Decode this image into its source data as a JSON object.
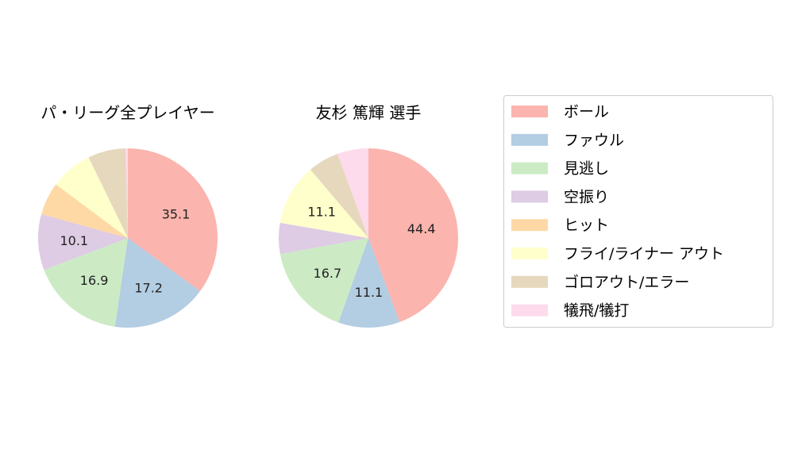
{
  "chart_data": [
    {
      "type": "pie",
      "title": "パ・リーグ全プレイヤー",
      "categories": [
        "ボール",
        "ファウル",
        "見逃し",
        "空振り",
        "ヒット",
        "フライ/ライナー アウト",
        "ゴロアウト/エラー",
        "犠飛/犠打"
      ],
      "values": [
        35.1,
        17.2,
        16.9,
        10.1,
        5.9,
        7.6,
        6.8,
        0.4
      ],
      "labels": [
        "35.1",
        "17.2",
        "16.9",
        "10.1",
        "",
        "",
        "",
        ""
      ]
    },
    {
      "type": "pie",
      "title": "友杉 篤輝  選手",
      "categories": [
        "ボール",
        "ファウル",
        "見逃し",
        "空振り",
        "ヒット",
        "フライ/ライナー アウト",
        "ゴロアウト/エラー",
        "犠飛/犠打"
      ],
      "values": [
        44.4,
        11.1,
        16.7,
        5.6,
        0,
        11.1,
        5.6,
        5.6
      ],
      "labels": [
        "44.4",
        "11.1",
        "16.7",
        "",
        "",
        "11.1",
        "",
        ""
      ]
    }
  ],
  "legend": {
    "entries": [
      "ボール",
      "ファウル",
      "見逃し",
      "空振り",
      "ヒット",
      "フライ/ライナー アウト",
      "ゴロアウト/エラー",
      "犠飛/犠打"
    ],
    "colors": [
      "#fbb4ae",
      "#b3cde3",
      "#ccebc5",
      "#decbe4",
      "#fed9a6",
      "#ffffcc",
      "#e5d8bd",
      "#fddaec"
    ],
    "placement": "right"
  }
}
